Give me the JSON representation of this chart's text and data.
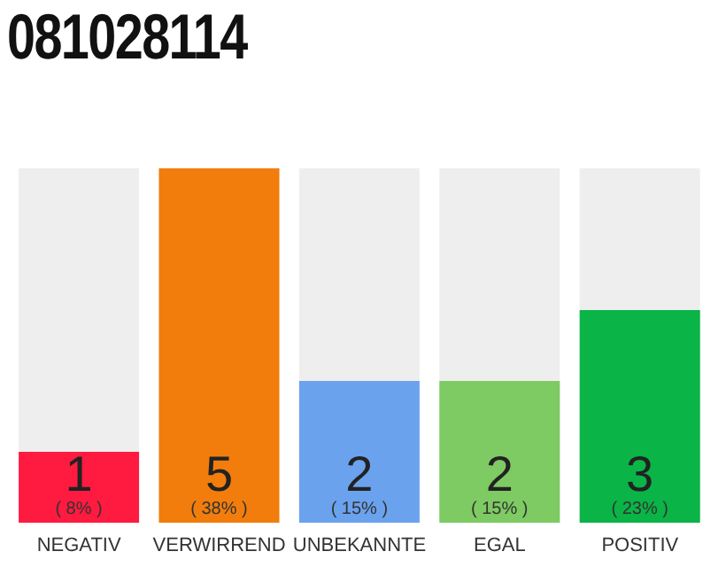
{
  "chart_data": {
    "type": "bar",
    "title": "081028114",
    "categories": [
      "NEGATIV",
      "VERWIRREND",
      "UNBEKANNTE",
      "EGAL",
      "POSITIV"
    ],
    "values": [
      1,
      5,
      2,
      2,
      3
    ],
    "colors": [
      "#ff1a40",
      "#f27d0c",
      "#6aa2ee",
      "#7dcb62",
      "#0ab446"
    ],
    "tick_labels": "x",
    "data_labels": true,
    "annotations": [
      "( 8% )",
      "( 38% )",
      "( 15% )",
      "( 15% )",
      "( 23% )"
    ]
  }
}
